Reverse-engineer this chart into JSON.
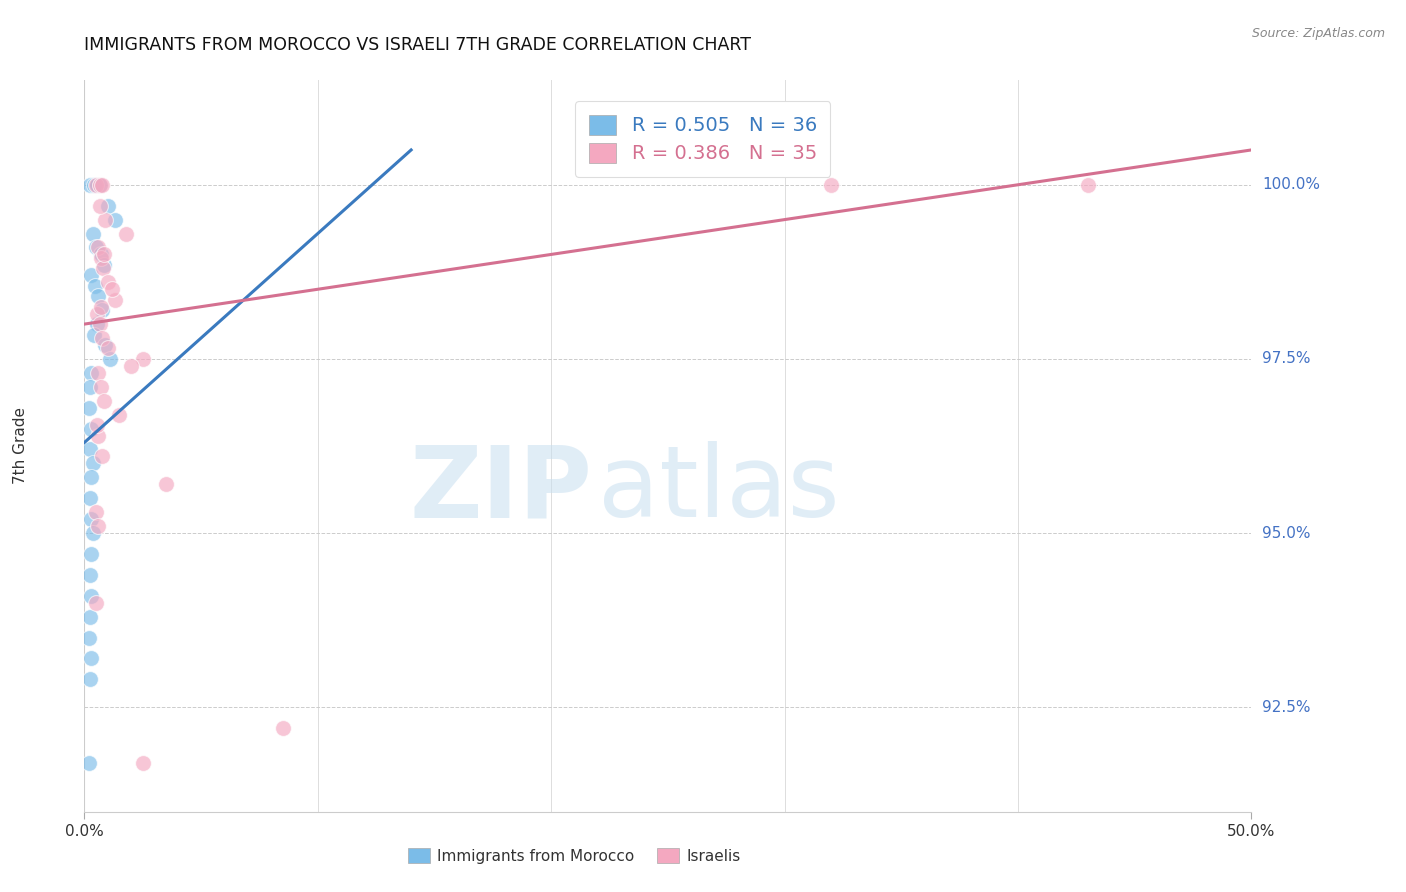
{
  "title": "IMMIGRANTS FROM MOROCCO VS ISRAELI 7TH GRADE CORRELATION CHART",
  "source": "Source: ZipAtlas.com",
  "ylabel": "7th Grade",
  "right_yticks": [
    100.0,
    97.5,
    95.0,
    92.5
  ],
  "right_ytick_labels": [
    "100.0%",
    "97.5%",
    "95.0%",
    "92.5%"
  ],
  "xlim": [
    0.0,
    50.0
  ],
  "ylim": [
    91.0,
    101.5
  ],
  "legend_blue_r": "R = 0.505",
  "legend_blue_n": "N = 36",
  "legend_pink_r": "R = 0.386",
  "legend_pink_n": "N = 35",
  "blue_color": "#7bbce8",
  "pink_color": "#f4a8c0",
  "blue_line_color": "#3a7abf",
  "pink_line_color": "#d47090",
  "blue_points": [
    [
      0.25,
      100.0
    ],
    [
      0.4,
      100.0
    ],
    [
      0.55,
      100.0
    ],
    [
      0.65,
      100.0
    ],
    [
      1.0,
      99.7
    ],
    [
      1.3,
      99.5
    ],
    [
      0.35,
      99.3
    ],
    [
      0.5,
      99.1
    ],
    [
      0.7,
      99.0
    ],
    [
      0.85,
      98.85
    ],
    [
      0.3,
      98.7
    ],
    [
      0.45,
      98.55
    ],
    [
      0.6,
      98.4
    ],
    [
      0.75,
      98.2
    ],
    [
      0.55,
      98.0
    ],
    [
      0.4,
      97.85
    ],
    [
      0.9,
      97.7
    ],
    [
      1.1,
      97.5
    ],
    [
      0.3,
      97.3
    ],
    [
      0.25,
      97.1
    ],
    [
      0.2,
      96.8
    ],
    [
      0.3,
      96.5
    ],
    [
      0.25,
      96.2
    ],
    [
      0.35,
      96.0
    ],
    [
      0.3,
      95.8
    ],
    [
      0.25,
      95.5
    ],
    [
      0.3,
      95.2
    ],
    [
      0.35,
      95.0
    ],
    [
      0.3,
      94.7
    ],
    [
      0.25,
      94.4
    ],
    [
      0.3,
      94.1
    ],
    [
      0.25,
      93.8
    ],
    [
      0.2,
      93.5
    ],
    [
      0.3,
      93.2
    ],
    [
      0.25,
      92.9
    ],
    [
      0.2,
      91.7
    ]
  ],
  "pink_points": [
    [
      0.5,
      100.0
    ],
    [
      0.65,
      100.0
    ],
    [
      0.75,
      100.0
    ],
    [
      32.0,
      100.0
    ],
    [
      43.0,
      100.0
    ],
    [
      1.8,
      99.3
    ],
    [
      0.6,
      99.1
    ],
    [
      0.7,
      98.95
    ],
    [
      0.8,
      98.8
    ],
    [
      1.0,
      98.6
    ],
    [
      1.3,
      98.35
    ],
    [
      0.55,
      98.15
    ],
    [
      0.65,
      98.0
    ],
    [
      0.75,
      97.8
    ],
    [
      1.0,
      97.65
    ],
    [
      2.5,
      97.5
    ],
    [
      0.6,
      97.3
    ],
    [
      0.7,
      97.1
    ],
    [
      0.85,
      96.9
    ],
    [
      1.5,
      96.7
    ],
    [
      0.6,
      96.4
    ],
    [
      0.75,
      96.1
    ],
    [
      3.5,
      95.7
    ],
    [
      0.5,
      95.3
    ],
    [
      0.6,
      95.1
    ],
    [
      2.0,
      97.4
    ],
    [
      0.55,
      96.55
    ],
    [
      0.7,
      98.25
    ],
    [
      1.2,
      98.5
    ],
    [
      0.85,
      99.0
    ],
    [
      0.9,
      99.5
    ],
    [
      0.65,
      99.7
    ],
    [
      8.5,
      92.2
    ],
    [
      2.5,
      91.7
    ],
    [
      0.5,
      94.0
    ]
  ],
  "blue_trendline_x": [
    0.0,
    14.0
  ],
  "blue_trendline_y": [
    96.3,
    100.5
  ],
  "pink_trendline_x": [
    0.0,
    50.0
  ],
  "pink_trendline_y": [
    98.0,
    100.5
  ],
  "xtick_minor": [
    10,
    20,
    30,
    40
  ]
}
